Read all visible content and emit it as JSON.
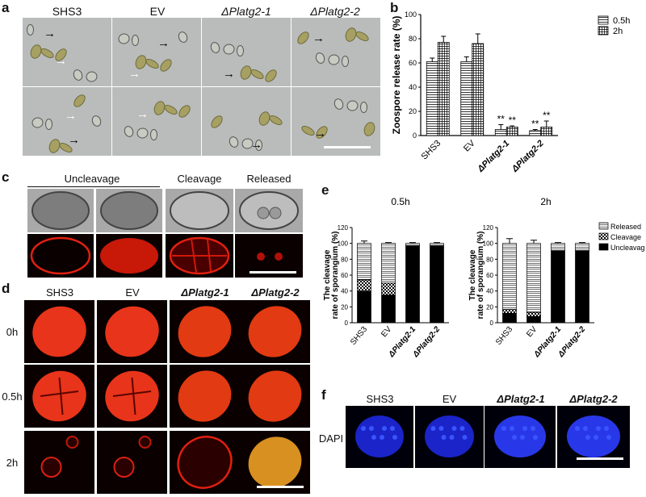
{
  "panels": {
    "a": "a",
    "b": "b",
    "c": "c",
    "d": "d",
    "e": "e",
    "f": "f"
  },
  "strains": [
    "SHS3",
    "EV",
    "ΔPlatg2-1",
    "ΔPlatg2-2"
  ],
  "panel_c": {
    "uncleavage": "Uncleavage",
    "cleavage": "Cleavage",
    "released": "Released"
  },
  "panel_d": {
    "rows": [
      "0h",
      "0.5h",
      "2h"
    ]
  },
  "panel_f": {
    "stain": "DAPI"
  },
  "chart_data": [
    {
      "type": "bar",
      "panel": "b",
      "ylabel": "Zoospore release rate (%)",
      "categories": [
        "SHS3",
        "EV",
        "ΔPlatg2-1",
        "ΔPlatg2-2"
      ],
      "ylim": [
        0,
        100
      ],
      "yticks": [
        0,
        20,
        40,
        60,
        80,
        100
      ],
      "series": [
        {
          "name": "0.5h",
          "values": [
            61,
            61,
            5,
            4
          ],
          "errors": [
            3,
            4,
            4,
            1
          ]
        },
        {
          "name": "2h",
          "values": [
            77,
            76,
            7,
            7
          ],
          "errors": [
            5,
            8,
            1,
            5
          ]
        }
      ],
      "annotations": [
        "",
        "",
        "**",
        "**"
      ],
      "annotations_2h": [
        "",
        "",
        "**",
        "**"
      ],
      "legend": "top-right"
    },
    {
      "type": "bar",
      "stacked": true,
      "panel": "e-left",
      "title": "0.5h",
      "ylabel": "The cleavage rate of sporangium (%)",
      "categories": [
        "SHS3",
        "EV",
        "ΔPlatg2-1",
        "ΔPlatg2-2"
      ],
      "ylim": [
        0,
        120
      ],
      "yticks": [
        0,
        20,
        40,
        60,
        80,
        100,
        120
      ],
      "series": [
        {
          "name": "Uncleavage",
          "values": [
            40,
            35,
            97,
            97
          ]
        },
        {
          "name": "Cleavage",
          "values": [
            14,
            15,
            0,
            0
          ]
        },
        {
          "name": "Released",
          "values": [
            46,
            50,
            3,
            3
          ]
        }
      ],
      "errors": [
        3,
        1,
        1,
        1
      ]
    },
    {
      "type": "bar",
      "stacked": true,
      "panel": "e-right",
      "title": "2h",
      "ylabel": "The cleavage rate of sporangium (%)",
      "categories": [
        "SHS3",
        "EV",
        "ΔPlatg2-1",
        "ΔPlatg2-2"
      ],
      "ylim": [
        0,
        120
      ],
      "yticks": [
        0,
        20,
        40,
        60,
        80,
        100,
        120
      ],
      "series": [
        {
          "name": "Uncleavage",
          "values": [
            12,
            8,
            91,
            91
          ]
        },
        {
          "name": "Cleavage",
          "values": [
            5,
            5,
            0,
            0
          ]
        },
        {
          "name": "Released",
          "values": [
            83,
            87,
            9,
            9
          ]
        }
      ],
      "errors": [
        6,
        4,
        1,
        1
      ],
      "legend": "top-right"
    }
  ]
}
